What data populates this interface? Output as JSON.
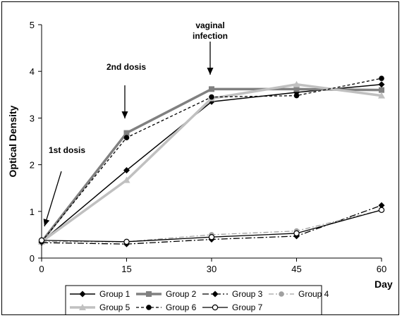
{
  "chart_data": {
    "type": "line",
    "xlabel": "Day",
    "ylabel": "Optical Density",
    "x": [
      0,
      15,
      30,
      45,
      60
    ],
    "xlim": [
      0,
      60
    ],
    "ylim": [
      0,
      5
    ],
    "yticks": [
      0,
      1,
      2,
      3,
      4,
      5
    ],
    "grid": false,
    "legend_position": "bottom",
    "annotations": [
      {
        "text": "1st dosis",
        "x": 0
      },
      {
        "text": "2nd dosis",
        "x": 15
      },
      {
        "text": "vaginal infection",
        "lines": [
          "vaginal",
          "infection"
        ],
        "x": 30
      }
    ],
    "series": [
      {
        "name": "Group 1",
        "values": [
          0.35,
          1.88,
          3.35,
          3.55,
          3.72
        ],
        "color": "#000000",
        "marker": "diamond",
        "dash": "",
        "width": 1.5
      },
      {
        "name": "Group 2",
        "values": [
          0.35,
          2.68,
          3.62,
          3.62,
          3.6
        ],
        "color": "#808080",
        "marker": "square",
        "dash": "",
        "width": 3.5
      },
      {
        "name": "Group 3",
        "values": [
          0.33,
          0.3,
          0.4,
          0.47,
          1.13
        ],
        "color": "#000000",
        "marker": "diamond",
        "dash": "9,3,2,3",
        "width": 1.3
      },
      {
        "name": "Group 4",
        "values": [
          0.35,
          0.35,
          0.5,
          0.58,
          1.03
        ],
        "color": "#a0a0a0",
        "marker": "circle",
        "dash": "7,3,2,3",
        "width": 1.3
      },
      {
        "name": "Group 5",
        "values": [
          0.35,
          1.67,
          3.42,
          3.72,
          3.48
        ],
        "color": "#c0c0c0",
        "marker": "triangle",
        "dash": "",
        "width": 3.5
      },
      {
        "name": "Group 6",
        "values": [
          0.35,
          2.58,
          3.45,
          3.48,
          3.85
        ],
        "color": "#000000",
        "marker": "circle",
        "dash": "4,3",
        "width": 1.3
      },
      {
        "name": "Group 7",
        "values": [
          0.38,
          0.35,
          0.45,
          0.53,
          1.03
        ],
        "color": "#000000",
        "marker": "open-circle",
        "dash": "",
        "width": 1.3
      }
    ]
  }
}
